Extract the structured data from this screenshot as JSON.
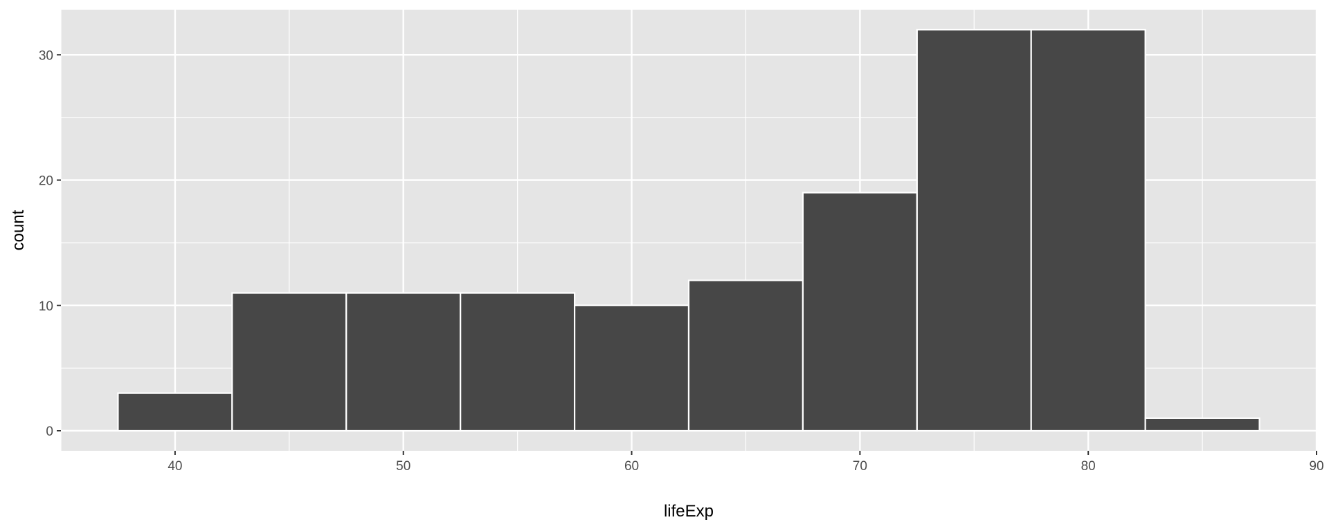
{
  "chart_data": {
    "type": "bar",
    "subtype": "histogram",
    "title": "",
    "xlabel": "lifeExp",
    "ylabel": "count",
    "xlim": [
      35,
      90
    ],
    "ylim": [
      -1.6,
      33.6
    ],
    "x_ticks": [
      40,
      50,
      60,
      70,
      80,
      90
    ],
    "y_ticks": [
      0,
      10,
      20,
      30
    ],
    "grid": true,
    "bin_width": 5,
    "bins": [
      {
        "start": 37.5,
        "end": 42.5,
        "count": 3
      },
      {
        "start": 42.5,
        "end": 47.5,
        "count": 11
      },
      {
        "start": 47.5,
        "end": 52.5,
        "count": 11
      },
      {
        "start": 52.5,
        "end": 57.5,
        "count": 11
      },
      {
        "start": 57.5,
        "end": 62.5,
        "count": 10
      },
      {
        "start": 62.5,
        "end": 67.5,
        "count": 12
      },
      {
        "start": 67.5,
        "end": 72.5,
        "count": 19
      },
      {
        "start": 72.5,
        "end": 77.5,
        "count": 32
      },
      {
        "start": 77.5,
        "end": 82.5,
        "count": 32
      },
      {
        "start": 82.5,
        "end": 87.5,
        "count": 1
      }
    ],
    "colors": {
      "panel_background": "#e5e5e5",
      "grid": "#ffffff",
      "bar_fill": "#474747",
      "bar_outline": "#ffffff",
      "tick_text": "#4d4d4d",
      "tick_mark": "#333333"
    }
  }
}
